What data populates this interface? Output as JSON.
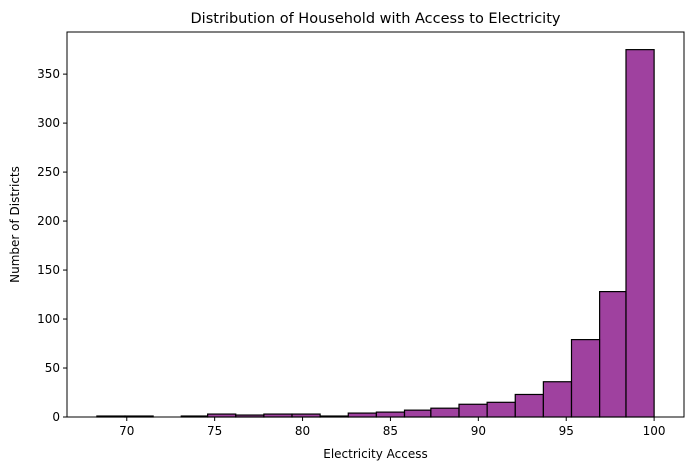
{
  "chart_data": {
    "type": "bar",
    "title": "Distribution of Household with Access to Electricity",
    "xlabel": "Electricity Access",
    "ylabel": "Number of Districts",
    "xlim": [
      66.6,
      101.7
    ],
    "ylim": [
      0,
      393
    ],
    "x_ticks": [
      70,
      75,
      80,
      85,
      90,
      95,
      100
    ],
    "y_ticks": [
      0,
      50,
      100,
      150,
      200,
      250,
      300,
      350
    ],
    "grid": false,
    "legend": "none",
    "bar_color": "#8b1a8b",
    "bar_opacity": 0.83,
    "edge_color": "#000000",
    "bins": [
      {
        "x0": 68.3,
        "x1": 69.9,
        "count": 1
      },
      {
        "x0": 69.9,
        "x1": 71.5,
        "count": 1
      },
      {
        "x0": 71.5,
        "x1": 73.1,
        "count": 0
      },
      {
        "x0": 73.1,
        "x1": 74.6,
        "count": 1
      },
      {
        "x0": 74.6,
        "x1": 76.2,
        "count": 3
      },
      {
        "x0": 76.2,
        "x1": 77.8,
        "count": 2
      },
      {
        "x0": 77.8,
        "x1": 79.4,
        "count": 3
      },
      {
        "x0": 79.4,
        "x1": 81.0,
        "count": 3
      },
      {
        "x0": 81.0,
        "x1": 82.6,
        "count": 1
      },
      {
        "x0": 82.6,
        "x1": 84.2,
        "count": 4
      },
      {
        "x0": 84.2,
        "x1": 85.8,
        "count": 5
      },
      {
        "x0": 85.8,
        "x1": 87.3,
        "count": 7
      },
      {
        "x0": 87.3,
        "x1": 88.9,
        "count": 9
      },
      {
        "x0": 88.9,
        "x1": 90.5,
        "count": 13
      },
      {
        "x0": 90.5,
        "x1": 92.1,
        "count": 15
      },
      {
        "x0": 92.1,
        "x1": 93.7,
        "count": 23
      },
      {
        "x0": 93.7,
        "x1": 95.3,
        "count": 36
      },
      {
        "x0": 95.3,
        "x1": 96.9,
        "count": 79
      },
      {
        "x0": 96.9,
        "x1": 98.4,
        "count": 128
      },
      {
        "x0": 98.4,
        "x1": 100.0,
        "count": 375
      }
    ]
  }
}
